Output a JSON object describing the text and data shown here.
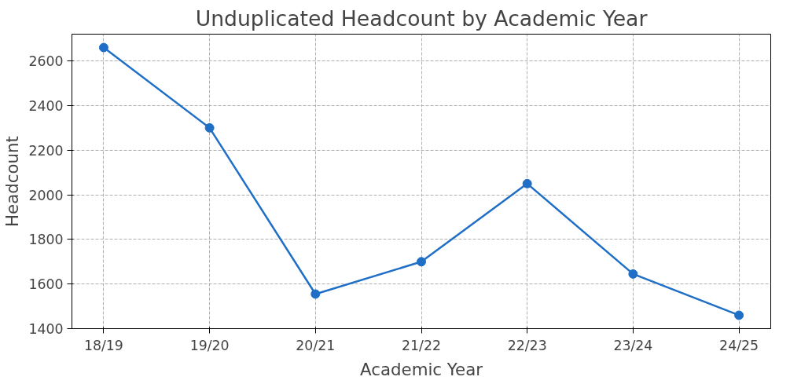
{
  "chart_data": {
    "type": "line",
    "title": "Unduplicated Headcount by Academic Year",
    "xlabel": "Academic Year",
    "ylabel": "Headcount",
    "categories": [
      "18/19",
      "19/20",
      "20/21",
      "21/22",
      "22/23",
      "23/24",
      "24/25"
    ],
    "series": [
      {
        "color": "#1f6fc6",
        "values": [
          2660,
          2300,
          1555,
          1700,
          2050,
          1645,
          1460
        ]
      }
    ],
    "ylim": [
      1400,
      2720
    ],
    "yticks": [
      1400,
      1600,
      1800,
      2000,
      2200,
      2400,
      2600
    ],
    "grid": true,
    "marker": "circle",
    "line_style": "solid"
  }
}
